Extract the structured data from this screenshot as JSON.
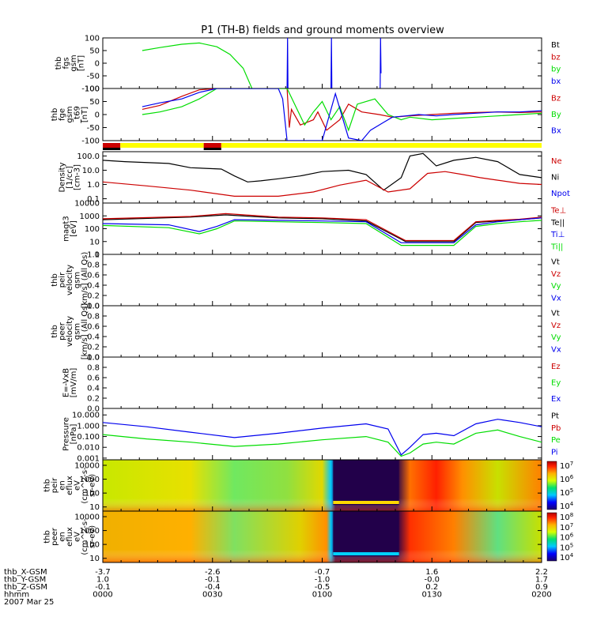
{
  "title": "P1 (TH-B) fields and ground moments overview",
  "colors": {
    "black": "#000000",
    "red": "#cc0000",
    "green": "#00dd00",
    "blue": "#0000ee",
    "yellow": "#ffff00"
  },
  "chart_data": [
    {
      "id": "fgs",
      "type": "line",
      "ylabel": [
        "thb",
        "fgs",
        "gsm",
        "[nT]"
      ],
      "yticks": [
        "100",
        "50",
        "0",
        "-50",
        "-100"
      ],
      "ylim": [
        -100,
        100
      ],
      "legend": [
        {
          "name": "Bt",
          "color": "black"
        },
        {
          "name": "bz",
          "color": "red"
        },
        {
          "name": "by",
          "color": "green"
        },
        {
          "name": "bx",
          "color": "blue"
        }
      ],
      "series": [
        {
          "name": "by",
          "color": "green",
          "x": [
            0.9,
            1.3,
            1.8,
            2.2,
            2.6,
            2.9,
            3.2,
            3.4
          ],
          "y": [
            50,
            62,
            75,
            80,
            65,
            35,
            -20,
            -100
          ]
        },
        {
          "name": "bx_a",
          "color": "blue",
          "x": [
            4.2,
            4.21,
            4.22
          ],
          "y": [
            -100,
            100,
            -100
          ]
        },
        {
          "name": "bx_b",
          "color": "blue",
          "x": [
            5.2,
            5.21,
            5.22
          ],
          "y": [
            -100,
            100,
            -100
          ]
        },
        {
          "name": "bx_c",
          "color": "blue",
          "x": [
            6.32,
            6.33,
            6.34
          ],
          "y": [
            -100,
            100,
            -40
          ]
        }
      ]
    },
    {
      "id": "fge",
      "type": "line",
      "ylabel": [
        "thb",
        "fge",
        "gsm",
        "_t69",
        "[nT]"
      ],
      "yticks": [
        "100",
        "50",
        "0",
        "-50",
        "-100"
      ],
      "ylim": [
        -100,
        100
      ],
      "legend": [
        {
          "name": "Bz",
          "color": "red"
        },
        {
          "name": "By",
          "color": "green"
        },
        {
          "name": "Bx",
          "color": "blue"
        }
      ],
      "series": [
        {
          "name": "Bz",
          "color": "red",
          "x": [
            0.9,
            1.3,
            1.8,
            2.2,
            2.6,
            4.2,
            4.25,
            4.3,
            4.5,
            4.8,
            4.9,
            5.1,
            5.4,
            5.6,
            5.9,
            6.3,
            6.6,
            7.0,
            7.5,
            8.0,
            8.5,
            9.0,
            9.5,
            10.0
          ],
          "y": [
            20,
            35,
            70,
            95,
            100,
            100,
            -50,
            20,
            -40,
            -20,
            10,
            -60,
            -20,
            40,
            10,
            0,
            -10,
            -5,
            0,
            5,
            8,
            10,
            8,
            10
          ]
        },
        {
          "name": "By",
          "color": "green",
          "x": [
            0.9,
            1.3,
            1.8,
            2.2,
            2.6,
            4.2,
            4.6,
            4.8,
            5.0,
            5.2,
            5.4,
            5.6,
            5.8,
            6.2,
            6.5,
            6.8,
            7.0,
            7.5,
            8.0,
            8.5,
            9.0,
            9.5,
            10.0
          ],
          "y": [
            0,
            10,
            30,
            60,
            100,
            100,
            -40,
            10,
            50,
            -20,
            30,
            -60,
            40,
            60,
            0,
            -20,
            -10,
            -20,
            -15,
            -10,
            -5,
            0,
            5
          ]
        },
        {
          "name": "Bx",
          "color": "blue",
          "x": [
            0.9,
            1.3,
            1.8,
            2.2,
            2.6,
            4.0,
            4.1,
            4.2,
            4.3,
            4.8,
            5.0,
            5.3,
            5.6,
            5.9,
            6.1,
            6.4,
            6.6,
            6.9,
            7.2,
            7.6,
            8.0,
            8.5,
            9.0,
            9.5,
            10.0
          ],
          "y": [
            30,
            45,
            60,
            85,
            100,
            100,
            60,
            -100,
            -100,
            -100,
            -100,
            80,
            -90,
            -100,
            -60,
            -30,
            -10,
            -5,
            0,
            -5,
            0,
            5,
            10,
            10,
            15
          ]
        }
      ]
    },
    {
      "id": "mode_bar",
      "type": "bar",
      "top_segments": [
        {
          "x0": 0.0,
          "x1": 0.4,
          "color": "red"
        },
        {
          "x0": 0.4,
          "x1": 2.3,
          "color": "yellow"
        },
        {
          "x0": 2.3,
          "x1": 2.7,
          "color": "red"
        },
        {
          "x0": 2.7,
          "x1": 10.0,
          "color": "yellow"
        }
      ],
      "bottom_segments": [
        {
          "x0": 0.0,
          "x1": 0.4,
          "color": "black"
        },
        {
          "x0": 2.3,
          "x1": 2.7,
          "color": "black"
        }
      ]
    },
    {
      "id": "density",
      "type": "line",
      "yscale": "log",
      "ylabel": [
        "Density",
        "[1/cc]",
        "[cm-3]"
      ],
      "yticks": [
        "100.0",
        "10.0",
        "1.0",
        "0.1"
      ],
      "ylim": [
        0.05,
        200
      ],
      "legend": [
        {
          "name": "Ne",
          "color": "red"
        },
        {
          "name": "Ni",
          "color": "black"
        },
        {
          "name": "Npot",
          "color": "blue"
        }
      ],
      "series": [
        {
          "name": "Ni",
          "color": "black",
          "x": [
            0,
            0.5,
            1.5,
            2.0,
            2.7,
            3.0,
            3.3,
            3.6,
            4.0,
            4.5,
            5.0,
            5.6,
            6.0,
            6.4,
            6.8,
            7.0,
            7.3,
            7.6,
            8.0,
            8.5,
            9.0,
            9.5,
            10.0
          ],
          "y": [
            50,
            40,
            30,
            15,
            12,
            4,
            1.5,
            1.8,
            2.5,
            4,
            8,
            10,
            5,
            0.4,
            3,
            100,
            150,
            20,
            50,
            80,
            40,
            5,
            3
          ]
        },
        {
          "name": "Ne",
          "color": "red",
          "x": [
            0,
            1.0,
            2.0,
            3.0,
            4.0,
            4.8,
            5.4,
            6.0,
            6.5,
            7.0,
            7.4,
            7.8,
            8.2,
            8.6,
            9.0,
            9.5,
            10.0
          ],
          "y": [
            1.5,
            0.8,
            0.4,
            0.15,
            0.15,
            0.3,
            0.9,
            2.0,
            0.3,
            0.5,
            6,
            8,
            5,
            3,
            2,
            1.2,
            1.0
          ]
        }
      ]
    },
    {
      "id": "temperature",
      "type": "line",
      "yscale": "log",
      "ylabel": [
        "magt3",
        "[eV]"
      ],
      "yticks": [
        "10000",
        "1000",
        "100",
        "10",
        "1"
      ],
      "ylim": [
        1,
        10000
      ],
      "legend": [
        {
          "name": "Te⊥",
          "color": "red"
        },
        {
          "name": "Te||",
          "color": "black"
        },
        {
          "name": "Ti⊥",
          "color": "blue"
        },
        {
          "name": "Ti||",
          "color": "green"
        }
      ],
      "series": [
        {
          "name": "Te||",
          "color": "black",
          "x": [
            0,
            2.0,
            2.8,
            3.4,
            4.0,
            5.0,
            6.0,
            6.8,
            6.9,
            7.5,
            8.0,
            8.5,
            9.0,
            9.5,
            10.0
          ],
          "y": [
            500,
            800,
            1200,
            900,
            700,
            600,
            400,
            15,
            10,
            10,
            10,
            300,
            400,
            500,
            700
          ]
        },
        {
          "name": "Te⊥",
          "color": "red",
          "x": [
            0,
            2.0,
            2.8,
            3.4,
            4.0,
            5.0,
            6.0,
            6.8,
            6.9,
            7.5,
            8.0,
            8.5,
            9.0,
            9.5,
            10.0
          ],
          "y": [
            600,
            900,
            1500,
            1100,
            800,
            700,
            500,
            18,
            12,
            12,
            12,
            350,
            450,
            550,
            800
          ]
        },
        {
          "name": "Ti⊥",
          "color": "blue",
          "x": [
            0,
            1.5,
            2.2,
            2.6,
            3.0,
            4.0,
            5.0,
            6.0,
            6.8,
            7.0,
            7.5,
            8.0,
            8.5,
            9.0,
            9.5,
            10.0
          ],
          "y": [
            250,
            200,
            60,
            150,
            500,
            450,
            400,
            350,
            8,
            8,
            8,
            8,
            200,
            350,
            500,
            700
          ]
        },
        {
          "name": "Ti||",
          "color": "green",
          "x": [
            0,
            1.5,
            2.2,
            2.6,
            3.0,
            4.0,
            5.0,
            6.0,
            6.8,
            7.0,
            7.5,
            8.0,
            8.5,
            9.0,
            9.5,
            10.0
          ],
          "y": [
            180,
            120,
            40,
            100,
            400,
            350,
            300,
            250,
            5,
            5,
            5,
            5,
            150,
            250,
            350,
            450
          ]
        }
      ]
    },
    {
      "id": "peir_velocity",
      "type": "line",
      "ylabel": [
        "thb",
        "peir",
        "velocity",
        "gsm",
        "[km/s] (All Qs)"
      ],
      "yticks": [
        "1.0",
        "0.8",
        "0.6",
        "0.4",
        "0.2",
        "0.0"
      ],
      "ylim": [
        0,
        1
      ],
      "legend": [
        {
          "name": "Vt",
          "color": "black"
        },
        {
          "name": "Vz",
          "color": "red"
        },
        {
          "name": "Vy",
          "color": "green"
        },
        {
          "name": "Vx",
          "color": "blue"
        }
      ],
      "series": []
    },
    {
      "id": "peer_velocity",
      "type": "line",
      "ylabel": [
        "thb",
        "peer",
        "velocity",
        "gsm",
        "[km/s] (All Qs)"
      ],
      "yticks": [
        "1.0",
        "0.8",
        "0.6",
        "0.4",
        "0.2",
        "0.0"
      ],
      "ylim": [
        0,
        1
      ],
      "legend": [
        {
          "name": "Vt",
          "color": "black"
        },
        {
          "name": "Vz",
          "color": "red"
        },
        {
          "name": "Vy",
          "color": "green"
        },
        {
          "name": "Vx",
          "color": "blue"
        }
      ],
      "series": []
    },
    {
      "id": "efield",
      "type": "line",
      "ylabel": [
        "E=-VxB",
        "[mV/m]"
      ],
      "yticks": [
        "1.0",
        "0.8",
        "0.6",
        "0.4",
        "0.2",
        "0.0"
      ],
      "ylim": [
        0,
        1
      ],
      "legend": [
        {
          "name": "Ez",
          "color": "red"
        },
        {
          "name": "Ey",
          "color": "green"
        },
        {
          "name": "Ex",
          "color": "blue"
        }
      ],
      "series": []
    },
    {
      "id": "pressure",
      "type": "line",
      "yscale": "log",
      "ylabel": [
        "Pressure",
        "[nPa]"
      ],
      "yticks": [
        "10.000",
        "1.000",
        "0.100",
        "0.010",
        "0.001"
      ],
      "ylim": [
        0.0007,
        40
      ],
      "legend": [
        {
          "name": "Pt",
          "color": "black"
        },
        {
          "name": "Pb",
          "color": "red"
        },
        {
          "name": "Pe",
          "color": "green"
        },
        {
          "name": "Pi",
          "color": "blue"
        }
      ],
      "series": [
        {
          "name": "Pi",
          "color": "blue",
          "x": [
            0,
            1.0,
            2.0,
            3.0,
            4.0,
            5.0,
            6.0,
            6.5,
            6.8,
            7.0,
            7.3,
            7.6,
            8.0,
            8.5,
            9.0,
            9.5,
            10.0
          ],
          "y": [
            2.0,
            0.8,
            0.25,
            0.08,
            0.2,
            0.6,
            1.5,
            0.5,
            0.002,
            0.01,
            0.15,
            0.2,
            0.12,
            1.5,
            4.0,
            2.0,
            0.8
          ]
        },
        {
          "name": "Pe",
          "color": "green",
          "x": [
            0,
            1.0,
            2.0,
            3.0,
            4.0,
            5.0,
            6.0,
            6.5,
            6.8,
            7.0,
            7.3,
            7.6,
            8.0,
            8.5,
            9.0,
            9.5,
            10.0
          ],
          "y": [
            0.15,
            0.06,
            0.03,
            0.012,
            0.02,
            0.05,
            0.1,
            0.03,
            0.0015,
            0.003,
            0.02,
            0.03,
            0.02,
            0.2,
            0.4,
            0.1,
            0.03
          ]
        }
      ]
    },
    {
      "id": "peir_spectrogram",
      "type": "heatmap",
      "yscale": "log",
      "ylabel": [
        "thb",
        "peir",
        "en",
        "eflux",
        "eV",
        "(cm^2-s-",
        "sr-eV)"
      ],
      "yticks": [
        "10000",
        "1000",
        "100",
        "10"
      ],
      "ylim": [
        5,
        25000
      ],
      "colorbar": {
        "labels": [
          "10^7",
          "10^6",
          "10^5",
          "10^4"
        ]
      }
    },
    {
      "id": "peer_spectrogram",
      "type": "heatmap",
      "yscale": "log",
      "ylabel": [
        "thb",
        "peer",
        "en",
        "eflux",
        "eV",
        "(cm^2-s-",
        "sr-eV)"
      ],
      "yticks": [
        "10000",
        "1000",
        "100",
        "10"
      ],
      "ylim": [
        5,
        25000
      ],
      "colorbar": {
        "labels": [
          "10^8",
          "10^7",
          "10^6",
          "10^5",
          "10^4"
        ]
      }
    }
  ],
  "xaxis": {
    "rows": [
      {
        "label": "thb_X-GSM",
        "values": [
          "-3.7",
          "-2.6",
          "-0.7",
          "1.6",
          "2.2"
        ]
      },
      {
        "label": "thb_Y-GSM",
        "values": [
          "1.0",
          "-0.1",
          "-1.0",
          "-0.0",
          "1.7"
        ]
      },
      {
        "label": "thb_Z-GSM",
        "values": [
          "-0.1",
          "-0.4",
          "-0.5",
          "0.2",
          "0.9"
        ]
      },
      {
        "label": "hhmm",
        "values": [
          "0000",
          "0030",
          "0100",
          "0130",
          "0200"
        ]
      }
    ],
    "date": "2007 Mar 25"
  }
}
